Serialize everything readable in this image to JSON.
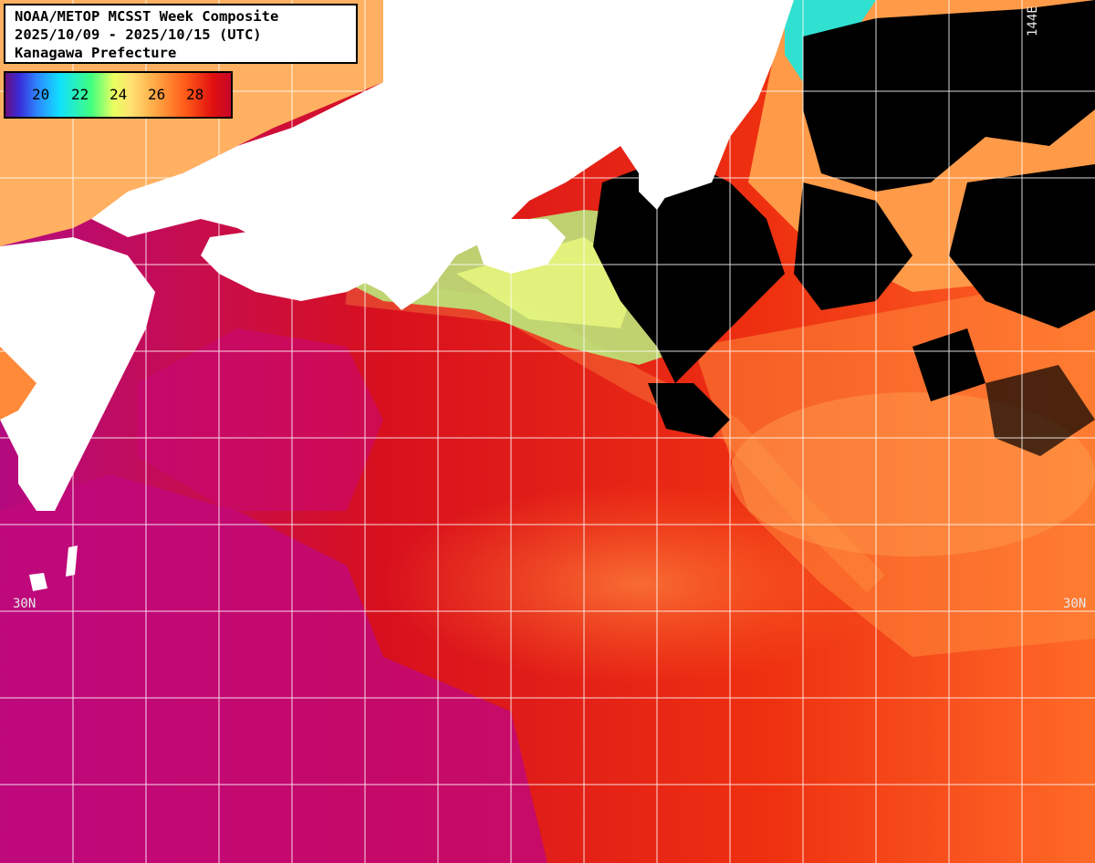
{
  "header": {
    "line1": "NOAA/METOP MCSST Week Composite",
    "line2": "2025/10/09 - 2025/10/15 (UTC)",
    "line3": "Kanagawa Prefecture"
  },
  "legend": {
    "ticks": [
      "20",
      "22",
      "24",
      "26",
      "28"
    ]
  },
  "grid_labels": {
    "lat_left": "30N",
    "lat_right": "30N",
    "lon_top": "144E"
  },
  "colors": {
    "land": "#ffffff",
    "cloud_missing": "#000000",
    "warm_28": "#e01010",
    "warmest": "#c0087c",
    "mid_26": "#ff7a30",
    "cool_24": "#a8f080",
    "gridline": "#ffffff"
  }
}
